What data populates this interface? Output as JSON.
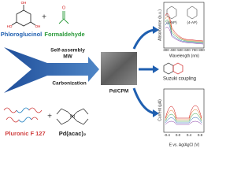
{
  "reactants": {
    "phloroglucinol": "Phloroglucinol",
    "formaldehyde": "Formaldehyde",
    "pluronic": "Pluronic F 127",
    "pd_precursor": "Pd(acac)₂"
  },
  "process": {
    "step1": "Self-assembly",
    "step2": "MW",
    "step3": "Carbonization"
  },
  "product": "Pd/CPM",
  "application": "Suzuki coupling",
  "top_plot": {
    "y_label": "Absorbance (a.u.)",
    "x_label": "Wavelength (nm)",
    "x_ticks": [
      "300",
      "400",
      "500",
      "600",
      "700",
      "800"
    ],
    "species_a": "(4-NP)",
    "species_b": "(4-AP)"
  },
  "bottom_plot": {
    "y_label": "Current (μA)",
    "x_label": "E vs. Ag/AgCl (V)",
    "x_ticks": [
      "-0.4",
      "0.0",
      "0.4",
      "0.8"
    ]
  }
}
